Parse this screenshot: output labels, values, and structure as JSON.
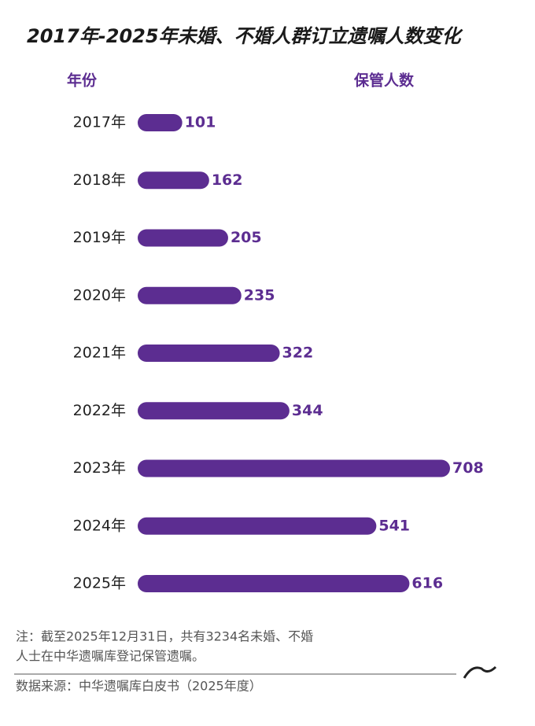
{
  "chart_data": {
    "type": "bar",
    "orientation": "horizontal",
    "title": "2017年-2025年未婚、不婚人群订立遗嘱人数变化",
    "category_header": "年份",
    "value_header": "保管人数",
    "categories": [
      "2017年",
      "2018年",
      "2019年",
      "2020年",
      "2021年",
      "2022年",
      "2023年",
      "2024年",
      "2025年"
    ],
    "values": [
      101,
      162,
      205,
      235,
      322,
      344,
      708,
      541,
      616
    ],
    "color": "#5c2d91",
    "note": [
      "注：截至2025年12月31日，共有3234名未婚、不婚",
      "人士在中华遗嘱库登记保管遗嘱。"
    ],
    "source": "数据来源：中华遗嘱库白皮书（2025年度）"
  }
}
